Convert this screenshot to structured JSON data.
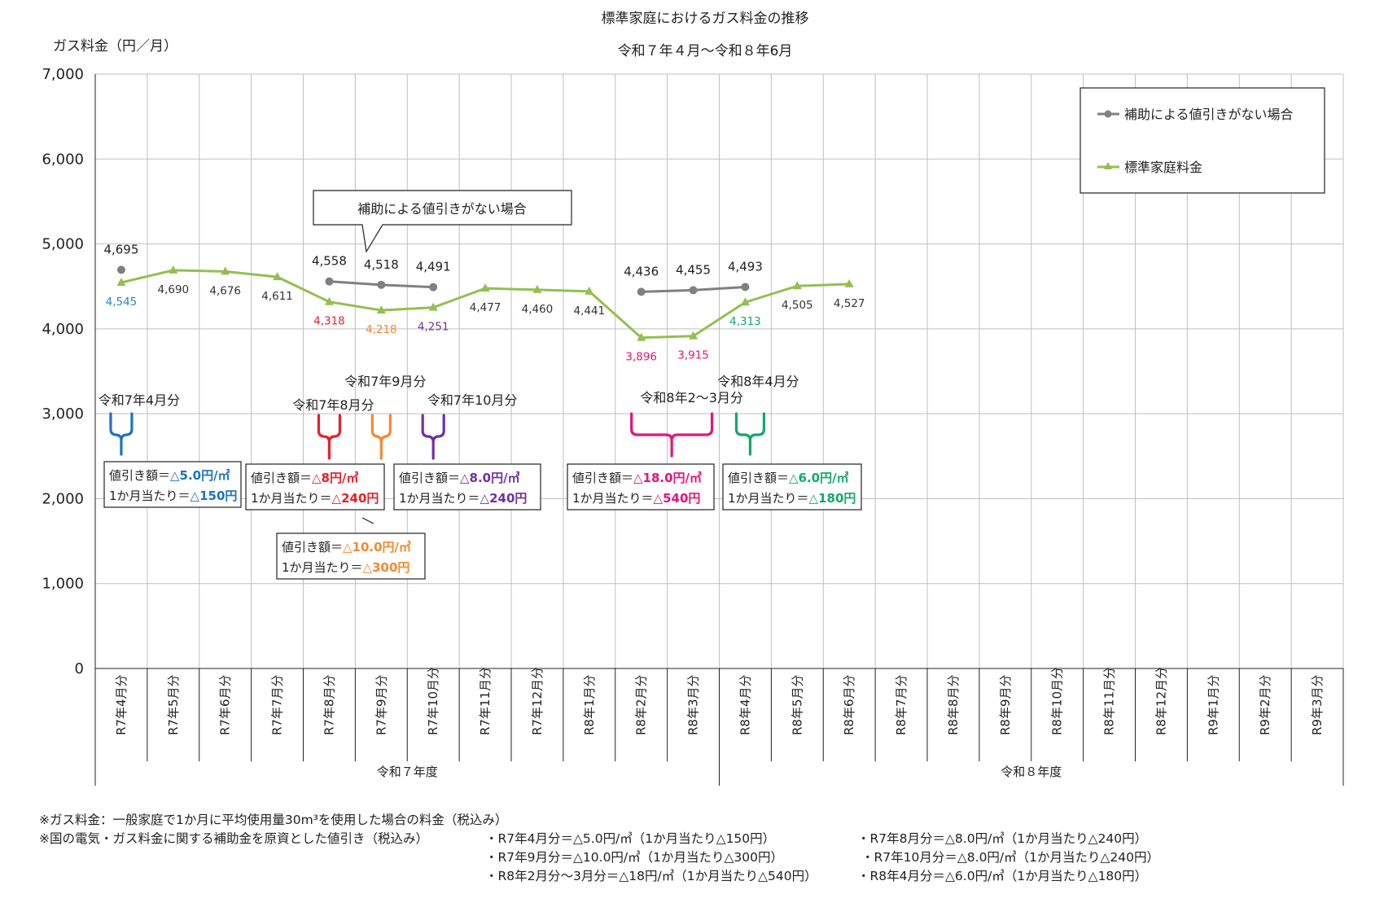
{
  "chart_data": {
    "type": "line",
    "title": "標準家庭におけるガス料金の推移",
    "subtitle": "令和７年４月～令和８年6月",
    "ylabel": "ガス料金（円／月）",
    "ylim": [
      0,
      7000
    ],
    "yticks": [
      "0",
      "1,000",
      "2,000",
      "3,000",
      "4,000",
      "5,000",
      "6,000",
      "7,000"
    ],
    "ytick_values": [
      0,
      1000,
      2000,
      3000,
      4000,
      5000,
      6000,
      7000
    ],
    "categories": [
      "R7年4月分",
      "R7年5月分",
      "R7年6月分",
      "R7年7月分",
      "R7年8月分",
      "R7年9月分",
      "R7年10月分",
      "R7年11月分",
      "R7年12月分",
      "R8年1月分",
      "R8年2月分",
      "R8年3月分",
      "R8年4月分",
      "R8年5月分",
      "R8年6月分",
      "R8年7月分",
      "R8年8月分",
      "R8年9月分",
      "R8年10月分",
      "R8年11月分",
      "R8年12月分",
      "R9年1月分",
      "R9年2月分",
      "R9年3月分"
    ],
    "fiscal_years": [
      {
        "label": "令和７年度",
        "from": 0,
        "to": 11
      },
      {
        "label": "令和８年度",
        "from": 12,
        "to": 23
      }
    ],
    "grid": true,
    "legend_position": "top-right",
    "series": [
      {
        "name": "補助による値引きがない場合",
        "color": "#808080",
        "marker": "circle",
        "segments": [
          [
            {
              "i": 0,
              "v": 4695,
              "label": "4,695"
            }
          ],
          [
            {
              "i": 4,
              "v": 4558,
              "label": "4,558"
            },
            {
              "i": 5,
              "v": 4518,
              "label": "4,518"
            },
            {
              "i": 6,
              "v": 4491,
              "label": "4,491"
            }
          ],
          [
            {
              "i": 10,
              "v": 4436,
              "label": "4,436"
            },
            {
              "i": 11,
              "v": 4455,
              "label": "4,455"
            },
            {
              "i": 12,
              "v": 4493,
              "label": "4,493"
            }
          ]
        ]
      },
      {
        "name": "標準家庭料金",
        "color": "#92c050",
        "marker": "triangle",
        "segments": [
          [
            {
              "i": 0,
              "v": 4545,
              "label": "4,545",
              "label_color": "#2e86c1"
            },
            {
              "i": 1,
              "v": 4690,
              "label": "4,690",
              "label_color": "#333333"
            },
            {
              "i": 2,
              "v": 4676,
              "label": "4,676",
              "label_color": "#333333"
            },
            {
              "i": 3,
              "v": 4611,
              "label": "4,611",
              "label_color": "#333333"
            },
            {
              "i": 4,
              "v": 4318,
              "label": "4,318",
              "label_color": "#e8202a"
            },
            {
              "i": 5,
              "v": 4218,
              "label": "4,218",
              "label_color": "#f28a30"
            },
            {
              "i": 6,
              "v": 4251,
              "label": "4,251",
              "label_color": "#7030a0"
            },
            {
              "i": 7,
              "v": 4477,
              "label": "4,477",
              "label_color": "#333333"
            },
            {
              "i": 8,
              "v": 4460,
              "label": "4,460",
              "label_color": "#333333"
            },
            {
              "i": 9,
              "v": 4441,
              "label": "4,441",
              "label_color": "#333333"
            },
            {
              "i": 10,
              "v": 3896,
              "label": "3,896",
              "label_color": "#e6137a"
            },
            {
              "i": 11,
              "v": 3915,
              "label": "3,915",
              "label_color": "#e6137a"
            },
            {
              "i": 12,
              "v": 4313,
              "label": "4,313",
              "label_color": "#12a86a"
            },
            {
              "i": 13,
              "v": 4505,
              "label": "4,505",
              "label_color": "#333333"
            },
            {
              "i": 14,
              "v": 4527,
              "label": "4,527",
              "label_color": "#333333"
            }
          ]
        ]
      }
    ],
    "callout": "補助による値引きがない場合",
    "discounts": [
      {
        "period": "令和7年4月分",
        "color": "#1e73be",
        "rate_prefix": "値引き額＝",
        "rate": "△5.0円/㎥",
        "month_prefix": "1か月当たり＝",
        "month": "△150円"
      },
      {
        "period": "令和7年8月分",
        "color": "#e8202a",
        "rate_prefix": "値引き額＝",
        "rate": "△8円/㎥",
        "month_prefix": "1か月当たり＝",
        "month": "△240円"
      },
      {
        "period": "令和7年9月分",
        "color": "#f28a30",
        "rate_prefix": "値引き額＝",
        "rate": "△10.0円/㎥",
        "month_prefix": "1か月当たり＝",
        "month": "△300円"
      },
      {
        "period": "令和7年10月分",
        "color": "#7030a0",
        "rate_prefix": "値引き額＝",
        "rate": "△8.0円/㎥",
        "month_prefix": "1か月当たり＝",
        "month": "△240円"
      },
      {
        "period": "令和8年2～3月分",
        "color": "#e6137a",
        "rate_prefix": "値引き額＝",
        "rate": "△18.0円/㎥",
        "month_prefix": "1か月当たり＝",
        "month": "△540円"
      },
      {
        "period": "令和8年4月分",
        "color": "#12a86a",
        "rate_prefix": "値引き額＝",
        "rate": "△6.0円/㎥",
        "month_prefix": "1か月当たり＝",
        "month": "△180円"
      }
    ]
  },
  "notes": {
    "line1": "※ガス料金：一般家庭で1か月に平均使用量30m³を使用した場合の料金（税込み）",
    "line2_head": "※国の電気・ガス料金に関する補助金を原資とした値引き（税込み）",
    "items": [
      "・R7年4月分＝△5.0円/㎥（1か月当たり△150円）",
      "・R7年8月分＝△8.0円/㎥（1か月当たり△240円）",
      "・R7年9月分＝△10.0円/㎥（1か月当たり△300円）",
      "・R7年10月分＝△8.0円/㎥（1か月当たり△240円）",
      "・R8年2月分～3月分＝△18円/㎥（1か月当たり△540円）",
      "・R8年4月分＝△6.0円/㎥（1か月当たり△180円）"
    ]
  }
}
